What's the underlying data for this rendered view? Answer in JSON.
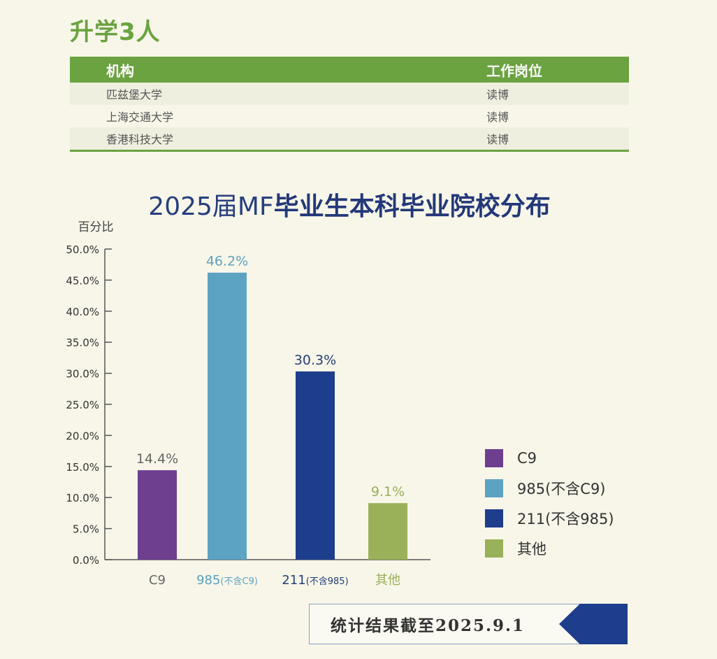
{
  "section": {
    "title": "升学3人",
    "columns": [
      "机构",
      "工作岗位"
    ],
    "rows": [
      {
        "org": "匹兹堡大学",
        "role": "读博"
      },
      {
        "org": "上海交通大学",
        "role": "读博"
      },
      {
        "org": "香港科技大学",
        "role": "读博"
      }
    ]
  },
  "chart_data": {
    "type": "bar",
    "title_prefix": "2025届MF",
    "title_main": "毕业生本科毕业院校分布",
    "ylabel": "百分比",
    "ylim": [
      0,
      50
    ],
    "yticks": [
      "0.0%",
      "5.0%",
      "10.0%",
      "15.0%",
      "20.0%",
      "25.0%",
      "30.0%",
      "35.0%",
      "40.0%",
      "45.0%",
      "50.0%"
    ],
    "categories": [
      {
        "main": "C9",
        "sub": ""
      },
      {
        "main": "985",
        "sub": "(不含C9)"
      },
      {
        "main": "211",
        "sub": "(不含985)"
      },
      {
        "main": "其他",
        "sub": ""
      }
    ],
    "values": [
      14.4,
      46.2,
      30.3,
      9.1
    ],
    "value_labels": [
      "14.4%",
      "46.2%",
      "30.3%",
      "9.1%"
    ],
    "colors": [
      "#6e3f8f",
      "#5ca3c3",
      "#1d3d8d",
      "#99b158"
    ],
    "label_colors": [
      "#666666",
      "#5ca3c3",
      "#26407e",
      "#9aae5a"
    ],
    "legend": [
      "C9",
      "985(不含C9)",
      "211(不含985)",
      "其他"
    ],
    "legend_placement": "right",
    "grid": false
  },
  "footer": {
    "text": "统计结果截至2025.9.1",
    "accent_color": "#1d3d8d"
  }
}
